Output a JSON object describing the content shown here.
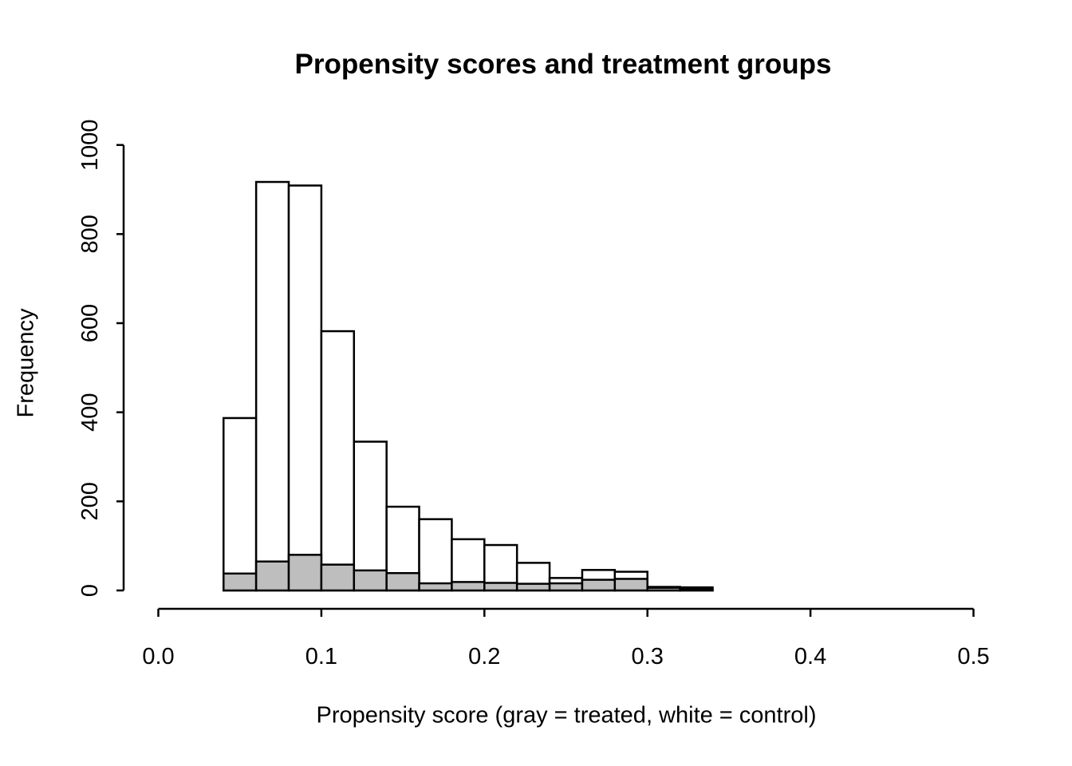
{
  "title": "Propensity scores and treatment groups",
  "x_axis": {
    "label": "Propensity score (gray = treated, white = control)",
    "ticks": [
      "0.0",
      "0.1",
      "0.2",
      "0.3",
      "0.4",
      "0.5"
    ],
    "tick_values": [
      0,
      0.1,
      0.2,
      0.3,
      0.4,
      0.5
    ]
  },
  "y_axis": {
    "label": "Frequency",
    "ticks": [
      "0",
      "200",
      "400",
      "600",
      "800",
      "1000"
    ],
    "tick_values": [
      0,
      200,
      400,
      600,
      800,
      1000
    ]
  },
  "colors": {
    "control_fill": "#ffffff",
    "treated_fill": "#bebebe",
    "line": "#000000"
  },
  "chart_data": {
    "type": "bar",
    "subtype": "overlaid-histograms",
    "title": "Propensity scores and treatment groups",
    "xlabel": "Propensity score (gray = treated, white = control)",
    "ylabel": "Frequency",
    "bin_start": 0.04,
    "bin_width": 0.02,
    "bin_edges": [
      0.04,
      0.06,
      0.08,
      0.1,
      0.12,
      0.14,
      0.16,
      0.18,
      0.2,
      0.22,
      0.24,
      0.26,
      0.28,
      0.3,
      0.32,
      0.34
    ],
    "xlim": [
      0,
      0.5
    ],
    "ylim": [
      0,
      1000
    ],
    "grid": false,
    "legend": "in x-axis label (gray = treated, white = control)",
    "series": [
      {
        "name": "control",
        "color": "#ffffff",
        "values": [
          387,
          917,
          909,
          582,
          334,
          188,
          160,
          115,
          102,
          62,
          28,
          46,
          42,
          8,
          7
        ]
      },
      {
        "name": "treated",
        "color": "#bebebe",
        "values": [
          38,
          65,
          80,
          58,
          45,
          39,
          16,
          19,
          17,
          15,
          16,
          24,
          26,
          6,
          3
        ]
      }
    ]
  }
}
